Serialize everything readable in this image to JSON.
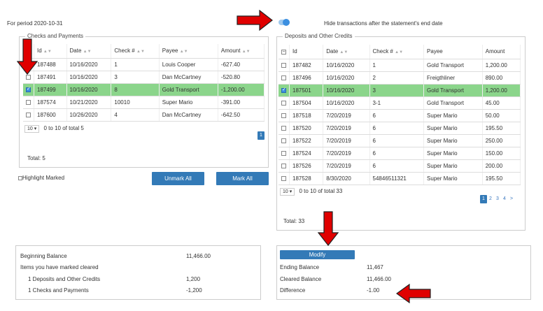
{
  "header": {
    "period_text": "For period 2020-10-31",
    "hide_label": "Hide transactions after the statement's end date"
  },
  "checks": {
    "legend": "Checks and Payments",
    "columns": [
      "Id",
      "Date",
      "Check #",
      "Payee",
      "Amount"
    ],
    "rows": [
      {
        "id": "187488",
        "date": "10/16/2020",
        "check": "1",
        "payee": "Louis Cooper",
        "amount": "-627.40",
        "checked": false
      },
      {
        "id": "187491",
        "date": "10/16/2020",
        "check": "3",
        "payee": "Dan McCartney",
        "amount": "-520.80",
        "checked": false
      },
      {
        "id": "187499",
        "date": "10/16/2020",
        "check": "8",
        "payee": "Gold Transport",
        "amount": "-1,200.00",
        "checked": true
      },
      {
        "id": "187574",
        "date": "10/21/2020",
        "check": "10010",
        "payee": "Super Mario",
        "amount": "-391.00",
        "checked": false
      },
      {
        "id": "187600",
        "date": "10/26/2020",
        "check": "4",
        "payee": "Dan McCartney",
        "amount": "-642.50",
        "checked": false
      }
    ],
    "page_size": "10",
    "range_text": "0 to 10 of total 5",
    "pages": [
      "1"
    ],
    "total_text": "Total: 5"
  },
  "deposits": {
    "legend": "Deposits and Other Credits",
    "columns": [
      "Id",
      "Date",
      "Check #",
      "Payee",
      "Amount"
    ],
    "rows": [
      {
        "id": "187482",
        "date": "10/16/2020",
        "check": "1",
        "payee": "Gold Transport",
        "amount": "1,200.00",
        "checked": false
      },
      {
        "id": "187496",
        "date": "10/16/2020",
        "check": "2",
        "payee": "Freigthliner",
        "amount": "890.00",
        "checked": false
      },
      {
        "id": "187501",
        "date": "10/16/2020",
        "check": "3",
        "payee": "Gold Transport",
        "amount": "1,200.00",
        "checked": true
      },
      {
        "id": "187504",
        "date": "10/16/2020",
        "check": "3-1",
        "payee": "Gold Transport",
        "amount": "45.00",
        "checked": false
      },
      {
        "id": "187518",
        "date": "7/20/2019",
        "check": "6",
        "payee": "Super Mario",
        "amount": "50.00",
        "checked": false
      },
      {
        "id": "187520",
        "date": "7/20/2019",
        "check": "6",
        "payee": "Super Mario",
        "amount": "195.50",
        "checked": false
      },
      {
        "id": "187522",
        "date": "7/20/2019",
        "check": "6",
        "payee": "Super Mario",
        "amount": "250.00",
        "checked": false
      },
      {
        "id": "187524",
        "date": "7/20/2019",
        "check": "6",
        "payee": "Super Mario",
        "amount": "150.00",
        "checked": false
      },
      {
        "id": "187526",
        "date": "7/20/2019",
        "check": "6",
        "payee": "Super Mario",
        "amount": "200.00",
        "checked": false
      },
      {
        "id": "187528",
        "date": "8/30/2020",
        "check": "54846511321",
        "payee": "Super Mario",
        "amount": "195.50",
        "checked": false
      }
    ],
    "page_size": "10",
    "range_text": "0 to 10 of total 33",
    "pages": [
      "1",
      "2",
      "3",
      "4",
      ">"
    ],
    "total_text": "Total: 33"
  },
  "actions": {
    "highlight_label": "Highlight Marked",
    "unmark_label": "Unmark All",
    "mark_label": "Mark All",
    "modify_label": "Modify"
  },
  "summary_left": {
    "beginning_label": "Beginning Balance",
    "beginning_value": "11,466.00",
    "items_label": "Items you have marked cleared",
    "deposits_label": "1 Deposits and Other Credits",
    "deposits_value": "1,200",
    "checks_label": "1 Checks and Payments",
    "checks_value": "-1,200"
  },
  "summary_right": {
    "ending_label": "Ending Balance",
    "ending_value": "11,467",
    "cleared_label": "Cleared Balance",
    "cleared_value": "11,466.00",
    "difference_label": "Difference",
    "difference_value": "-1.00"
  },
  "colors": {
    "accent": "#337ab7",
    "highlight": "#8bd58b",
    "arrow": "#e00000"
  }
}
